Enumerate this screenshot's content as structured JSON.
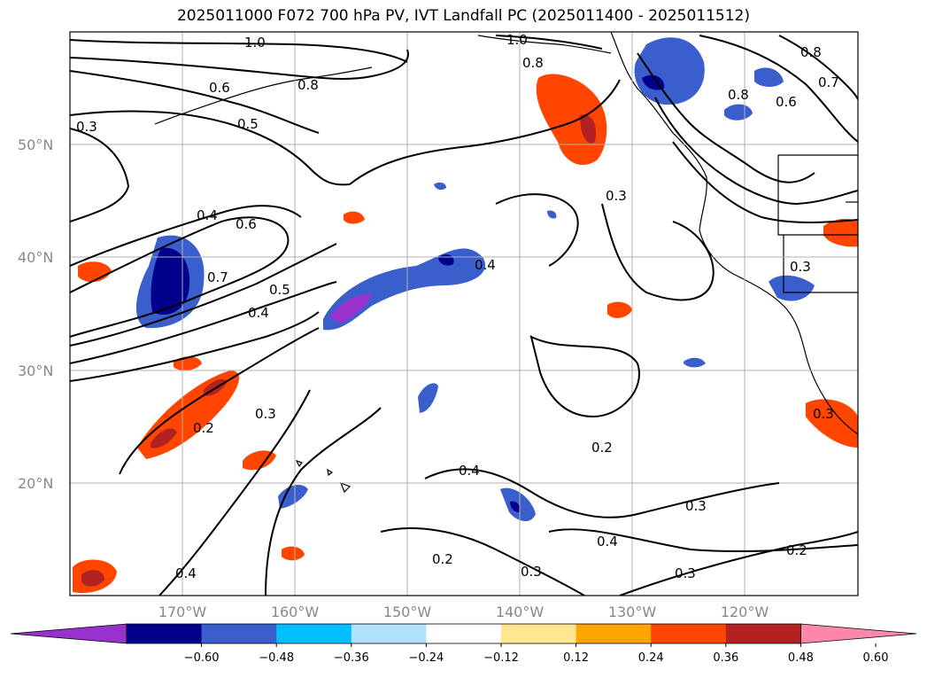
{
  "title": "2025011000 F072 700 hPa PV, IVT Landfall PC (2025011400 - 2025011512)",
  "map": {
    "lat_labels": [
      "50°N",
      "40°N",
      "30°N",
      "20°N"
    ],
    "lon_labels": [
      "170°W",
      "160°W",
      "150°W",
      "140°W",
      "130°W",
      "120°W"
    ],
    "contour_labels": [
      "1.0",
      "0.8",
      "1.0",
      "0.8",
      "0.6",
      "0.5",
      "0.3",
      "0.8",
      "0.7",
      "0.6",
      "0.8",
      "0.4",
      "0.6",
      "0.7",
      "0.5",
      "0.4",
      "0.3",
      "0.3",
      "0.3",
      "0.2",
      "0.3",
      "0.4",
      "0.2",
      "0.3",
      "0.4",
      "0.2",
      "0.3",
      "0.3",
      "0.2",
      "0.4",
      "0.4"
    ]
  },
  "colorbar": {
    "tick_labels": [
      "−0.60",
      "−0.48",
      "−0.36",
      "−0.24",
      "−0.12",
      "0.12",
      "0.24",
      "0.36",
      "0.48",
      "0.60"
    ],
    "colors": [
      "#9932cc",
      "#00008b",
      "#3a5fcd",
      "#00bfff",
      "#b0e2ff",
      "#ffffff",
      "#ffe78f",
      "#ffa500",
      "#ff4500",
      "#b22222",
      "#ff88aa"
    ]
  }
}
